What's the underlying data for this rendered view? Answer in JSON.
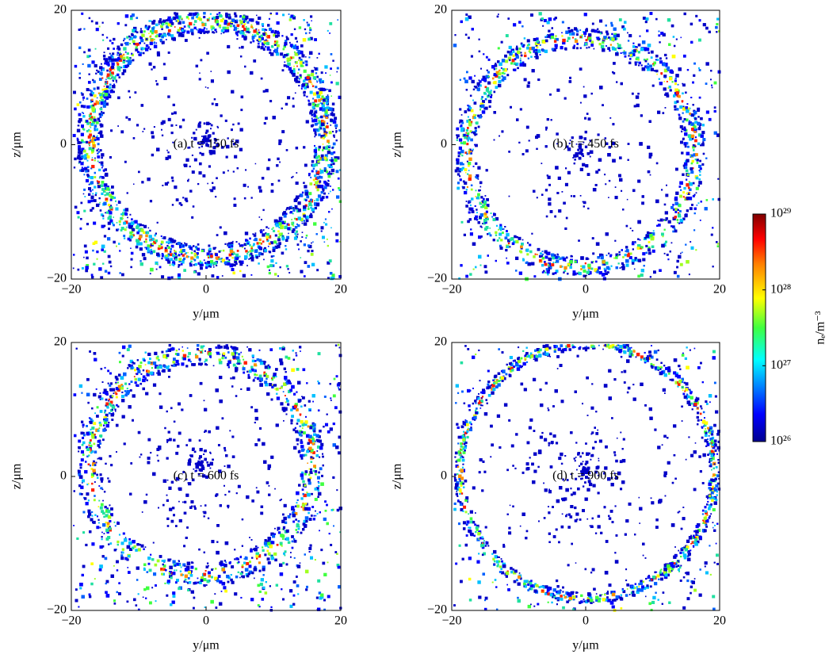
{
  "chart_data": [
    {
      "type": "density-map",
      "annotation": "(a) t = 150 fs",
      "xlabel": "y/μm",
      "ylabel": "z/μm",
      "xlim": [
        -20,
        20
      ],
      "ylim": [
        -20,
        20
      ],
      "xticks": [
        {
          "value": -20,
          "label": "−20"
        },
        0,
        20
      ],
      "yticks": [
        {
          "value": -20,
          "label": "−20"
        },
        0,
        20
      ]
    },
    {
      "type": "density-map",
      "annotation": "(b) t = 450 fs",
      "xlabel": "y/μm",
      "ylabel": "z/μm",
      "xlim": [
        -20,
        20
      ],
      "ylim": [
        -20,
        20
      ],
      "xticks": [
        {
          "value": -20,
          "label": "−20"
        },
        0,
        20
      ],
      "yticks": [
        {
          "value": -20,
          "label": "−20"
        },
        0,
        20
      ]
    },
    {
      "type": "density-map",
      "annotation": "(c) t = 600 fs",
      "xlabel": "y/μm",
      "ylabel": "z/μm",
      "xlim": [
        -20,
        20
      ],
      "ylim": [
        -20,
        20
      ],
      "xticks": [
        {
          "value": -20,
          "label": "−20"
        },
        0,
        20
      ],
      "yticks": [
        {
          "value": -20,
          "label": "−20"
        },
        0,
        20
      ]
    },
    {
      "type": "density-map",
      "annotation": "(d) t = 900 fs",
      "xlabel": "y/μm",
      "ylabel": "z/μm",
      "xlim": [
        -20,
        20
      ],
      "ylim": [
        -20,
        20
      ],
      "xticks": [
        {
          "value": -20,
          "label": "−20"
        },
        0,
        20
      ],
      "yticks": [
        {
          "value": -20,
          "label": "−20"
        },
        0,
        20
      ]
    }
  ],
  "colorbar": {
    "label": "nₑ/m⁻³",
    "log": true,
    "lim": [
      1e+26,
      1e+29
    ],
    "ticks": [
      {
        "value": 1e+26,
        "label": "10²⁶"
      },
      {
        "value": 1e+27,
        "label": "10²⁷"
      },
      {
        "value": 1e+28,
        "label": "10²⁸"
      },
      {
        "value": 1e+29,
        "label": "10²⁹"
      }
    ]
  }
}
